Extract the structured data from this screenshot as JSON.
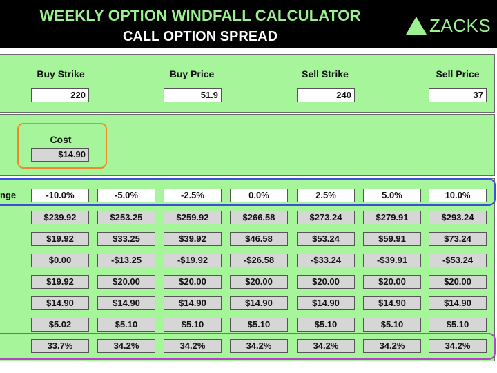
{
  "header": {
    "title": "WEEKLY OPTION WINDFALL CALCULATOR",
    "subtitle": "CALL OPTION SPREAD",
    "logo_text": "ZACKS"
  },
  "inputs": {
    "buy_strike_label": "Buy Strike",
    "buy_strike_value": "220",
    "buy_price_label": "Buy Price",
    "buy_price_value": "51.9",
    "sell_strike_label": "Sell Strike",
    "sell_strike_value": "240",
    "sell_price_label": "Sell Price",
    "sell_price_value": "37"
  },
  "cost": {
    "label": "Cost",
    "value": "$14.90"
  },
  "table": {
    "range_label": "nge",
    "changes": [
      "-10.0%",
      "-5.0%",
      "-2.5%",
      "0.0%",
      "2.5%",
      "5.0%",
      "10.0%"
    ],
    "rows": [
      [
        "$239.92",
        "$253.25",
        "$259.92",
        "$266.58",
        "$273.24",
        "$279.91",
        "$293.24"
      ],
      [
        "$19.92",
        "$33.25",
        "$39.92",
        "$46.58",
        "$53.24",
        "$59.91",
        "$73.24"
      ],
      [
        "$0.00",
        "-$13.25",
        "-$19.92",
        "-$26.58",
        "-$33.24",
        "-$39.91",
        "-$53.24"
      ],
      [
        "$19.92",
        "$20.00",
        "$20.00",
        "$20.00",
        "$20.00",
        "$20.00",
        "$20.00"
      ],
      [
        "$14.90",
        "$14.90",
        "$14.90",
        "$14.90",
        "$14.90",
        "$14.90",
        "$14.90"
      ],
      [
        "$5.02",
        "$5.10",
        "$5.10",
        "$5.10",
        "$5.10",
        "$5.10",
        "$5.10"
      ]
    ],
    "returns": [
      "33.7%",
      "34.2%",
      "34.2%",
      "34.2%",
      "34.2%",
      "34.2%",
      "34.2%"
    ]
  },
  "colors": {
    "panel_green": "#a6f59a",
    "title_green": "#9bf08f",
    "cost_highlight": "#f0892e",
    "change_highlight": "#3b4fd8",
    "return_highlight": "#b344c6"
  }
}
